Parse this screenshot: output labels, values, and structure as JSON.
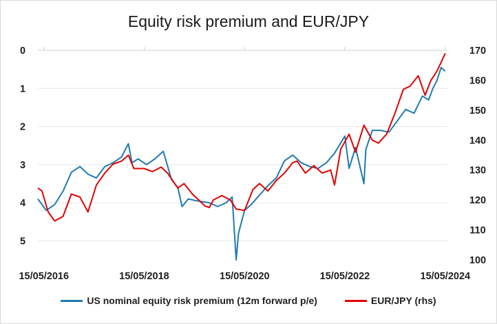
{
  "chart_data": {
    "type": "line",
    "title": "Equity risk premium and EUR/JPY",
    "x_tick_labels": [
      "15/05/2016",
      "15/05/2018",
      "15/05/2020",
      "15/05/2022",
      "15/05/2024"
    ],
    "y_left": {
      "ticks": [
        "0",
        "1",
        "2",
        "3",
        "4",
        "5"
      ],
      "range": [
        0,
        5.5
      ],
      "inverted": true
    },
    "y_right": {
      "ticks": [
        "170",
        "160",
        "150",
        "140",
        "130",
        "120",
        "110",
        "100"
      ],
      "range": [
        100,
        170
      ]
    },
    "x_range": [
      "2016-04-01",
      "2024-05-31"
    ],
    "gridlines": "horizontal",
    "legend_position": "bottom",
    "series": [
      {
        "name": "US nominal equity risk premium (12m forward p/e)",
        "axis": "left",
        "color": "#1f7ab0",
        "points": [
          [
            "2016-04-01",
            3.9
          ],
          [
            "2016-06-01",
            4.2
          ],
          [
            "2016-08-01",
            4.05
          ],
          [
            "2016-10-01",
            3.7
          ],
          [
            "2016-12-01",
            3.2
          ],
          [
            "2017-02-01",
            3.05
          ],
          [
            "2017-04-01",
            3.25
          ],
          [
            "2017-06-01",
            3.35
          ],
          [
            "2017-08-01",
            3.05
          ],
          [
            "2017-10-01",
            2.95
          ],
          [
            "2017-12-01",
            2.8
          ],
          [
            "2018-01-20",
            2.45
          ],
          [
            "2018-02-15",
            2.95
          ],
          [
            "2018-04-01",
            2.85
          ],
          [
            "2018-06-01",
            3.0
          ],
          [
            "2018-08-01",
            2.85
          ],
          [
            "2018-10-01",
            2.65
          ],
          [
            "2018-12-01",
            3.4
          ],
          [
            "2019-01-15",
            3.6
          ],
          [
            "2019-02-15",
            4.1
          ],
          [
            "2019-04-01",
            3.9
          ],
          [
            "2019-06-01",
            3.95
          ],
          [
            "2019-09-01",
            4.0
          ],
          [
            "2019-11-01",
            4.1
          ],
          [
            "2020-01-01",
            4.0
          ],
          [
            "2020-02-15",
            3.85
          ],
          [
            "2020-03-15",
            5.5
          ],
          [
            "2020-04-01",
            4.8
          ],
          [
            "2020-05-15",
            4.2
          ],
          [
            "2020-07-01",
            4.05
          ],
          [
            "2020-09-01",
            3.8
          ],
          [
            "2020-11-01",
            3.55
          ],
          [
            "2021-01-01",
            3.35
          ],
          [
            "2021-03-01",
            2.9
          ],
          [
            "2021-05-01",
            2.75
          ],
          [
            "2021-07-01",
            2.95
          ],
          [
            "2021-09-01",
            3.05
          ],
          [
            "2021-11-01",
            3.1
          ],
          [
            "2022-01-01",
            2.95
          ],
          [
            "2022-03-01",
            2.7
          ],
          [
            "2022-05-15",
            2.25
          ],
          [
            "2022-06-15",
            3.1
          ],
          [
            "2022-08-01",
            2.55
          ],
          [
            "2022-10-01",
            3.5
          ],
          [
            "2022-10-15",
            2.6
          ],
          [
            "2022-12-01",
            2.1
          ],
          [
            "2023-02-01",
            2.1
          ],
          [
            "2023-04-01",
            2.15
          ],
          [
            "2023-06-01",
            1.85
          ],
          [
            "2023-08-01",
            1.55
          ],
          [
            "2023-10-01",
            1.65
          ],
          [
            "2023-12-01",
            1.2
          ],
          [
            "2024-01-15",
            1.3
          ],
          [
            "2024-02-15",
            1.0
          ],
          [
            "2024-03-15",
            0.8
          ],
          [
            "2024-04-15",
            0.45
          ],
          [
            "2024-05-15",
            0.55
          ]
        ]
      },
      {
        "name": "EUR/JPY (rhs)",
        "axis": "right",
        "color": "#e00000",
        "points": [
          [
            "2016-04-01",
            124.0
          ],
          [
            "2016-05-01",
            123.0
          ],
          [
            "2016-06-15",
            116.0
          ],
          [
            "2016-08-01",
            113.0
          ],
          [
            "2016-10-01",
            114.5
          ],
          [
            "2016-12-01",
            122.0
          ],
          [
            "2017-02-01",
            121.0
          ],
          [
            "2017-04-01",
            116.0
          ],
          [
            "2017-06-01",
            125.0
          ],
          [
            "2017-08-01",
            129.0
          ],
          [
            "2017-10-01",
            132.0
          ],
          [
            "2017-12-01",
            133.0
          ],
          [
            "2018-01-20",
            135.0
          ],
          [
            "2018-03-01",
            130.5
          ],
          [
            "2018-05-15",
            130.5
          ],
          [
            "2018-07-15",
            129.5
          ],
          [
            "2018-09-15",
            131.0
          ],
          [
            "2018-11-01",
            129.0
          ],
          [
            "2019-01-15",
            124.0
          ],
          [
            "2019-03-01",
            125.5
          ],
          [
            "2019-05-01",
            122.0
          ],
          [
            "2019-08-01",
            118.0
          ],
          [
            "2019-09-01",
            117.5
          ],
          [
            "2019-10-01",
            120.0
          ],
          [
            "2019-12-01",
            121.5
          ],
          [
            "2020-02-01",
            120.0
          ],
          [
            "2020-03-15",
            117.0
          ],
          [
            "2020-05-15",
            116.5
          ],
          [
            "2020-07-15",
            123.5
          ],
          [
            "2020-09-01",
            125.5
          ],
          [
            "2020-11-01",
            123.0
          ],
          [
            "2021-01-01",
            126.5
          ],
          [
            "2021-03-01",
            129.0
          ],
          [
            "2021-05-01",
            132.5
          ],
          [
            "2021-06-01",
            133.0
          ],
          [
            "2021-08-01",
            129.0
          ],
          [
            "2021-10-01",
            131.5
          ],
          [
            "2021-12-01",
            129.0
          ],
          [
            "2022-02-01",
            130.0
          ],
          [
            "2022-03-01",
            125.0
          ],
          [
            "2022-04-15",
            137.0
          ],
          [
            "2022-06-15",
            142.0
          ],
          [
            "2022-08-01",
            136.0
          ],
          [
            "2022-10-01",
            145.0
          ],
          [
            "2022-12-01",
            140.0
          ],
          [
            "2023-01-15",
            139.0
          ],
          [
            "2023-03-15",
            142.0
          ],
          [
            "2023-05-15",
            149.0
          ],
          [
            "2023-07-15",
            157.0
          ],
          [
            "2023-09-01",
            158.0
          ],
          [
            "2023-11-01",
            161.5
          ],
          [
            "2023-12-20",
            155.0
          ],
          [
            "2024-02-01",
            160.0
          ],
          [
            "2024-03-15",
            163.0
          ],
          [
            "2024-04-15",
            166.0
          ],
          [
            "2024-05-15",
            169.0
          ]
        ]
      }
    ]
  }
}
